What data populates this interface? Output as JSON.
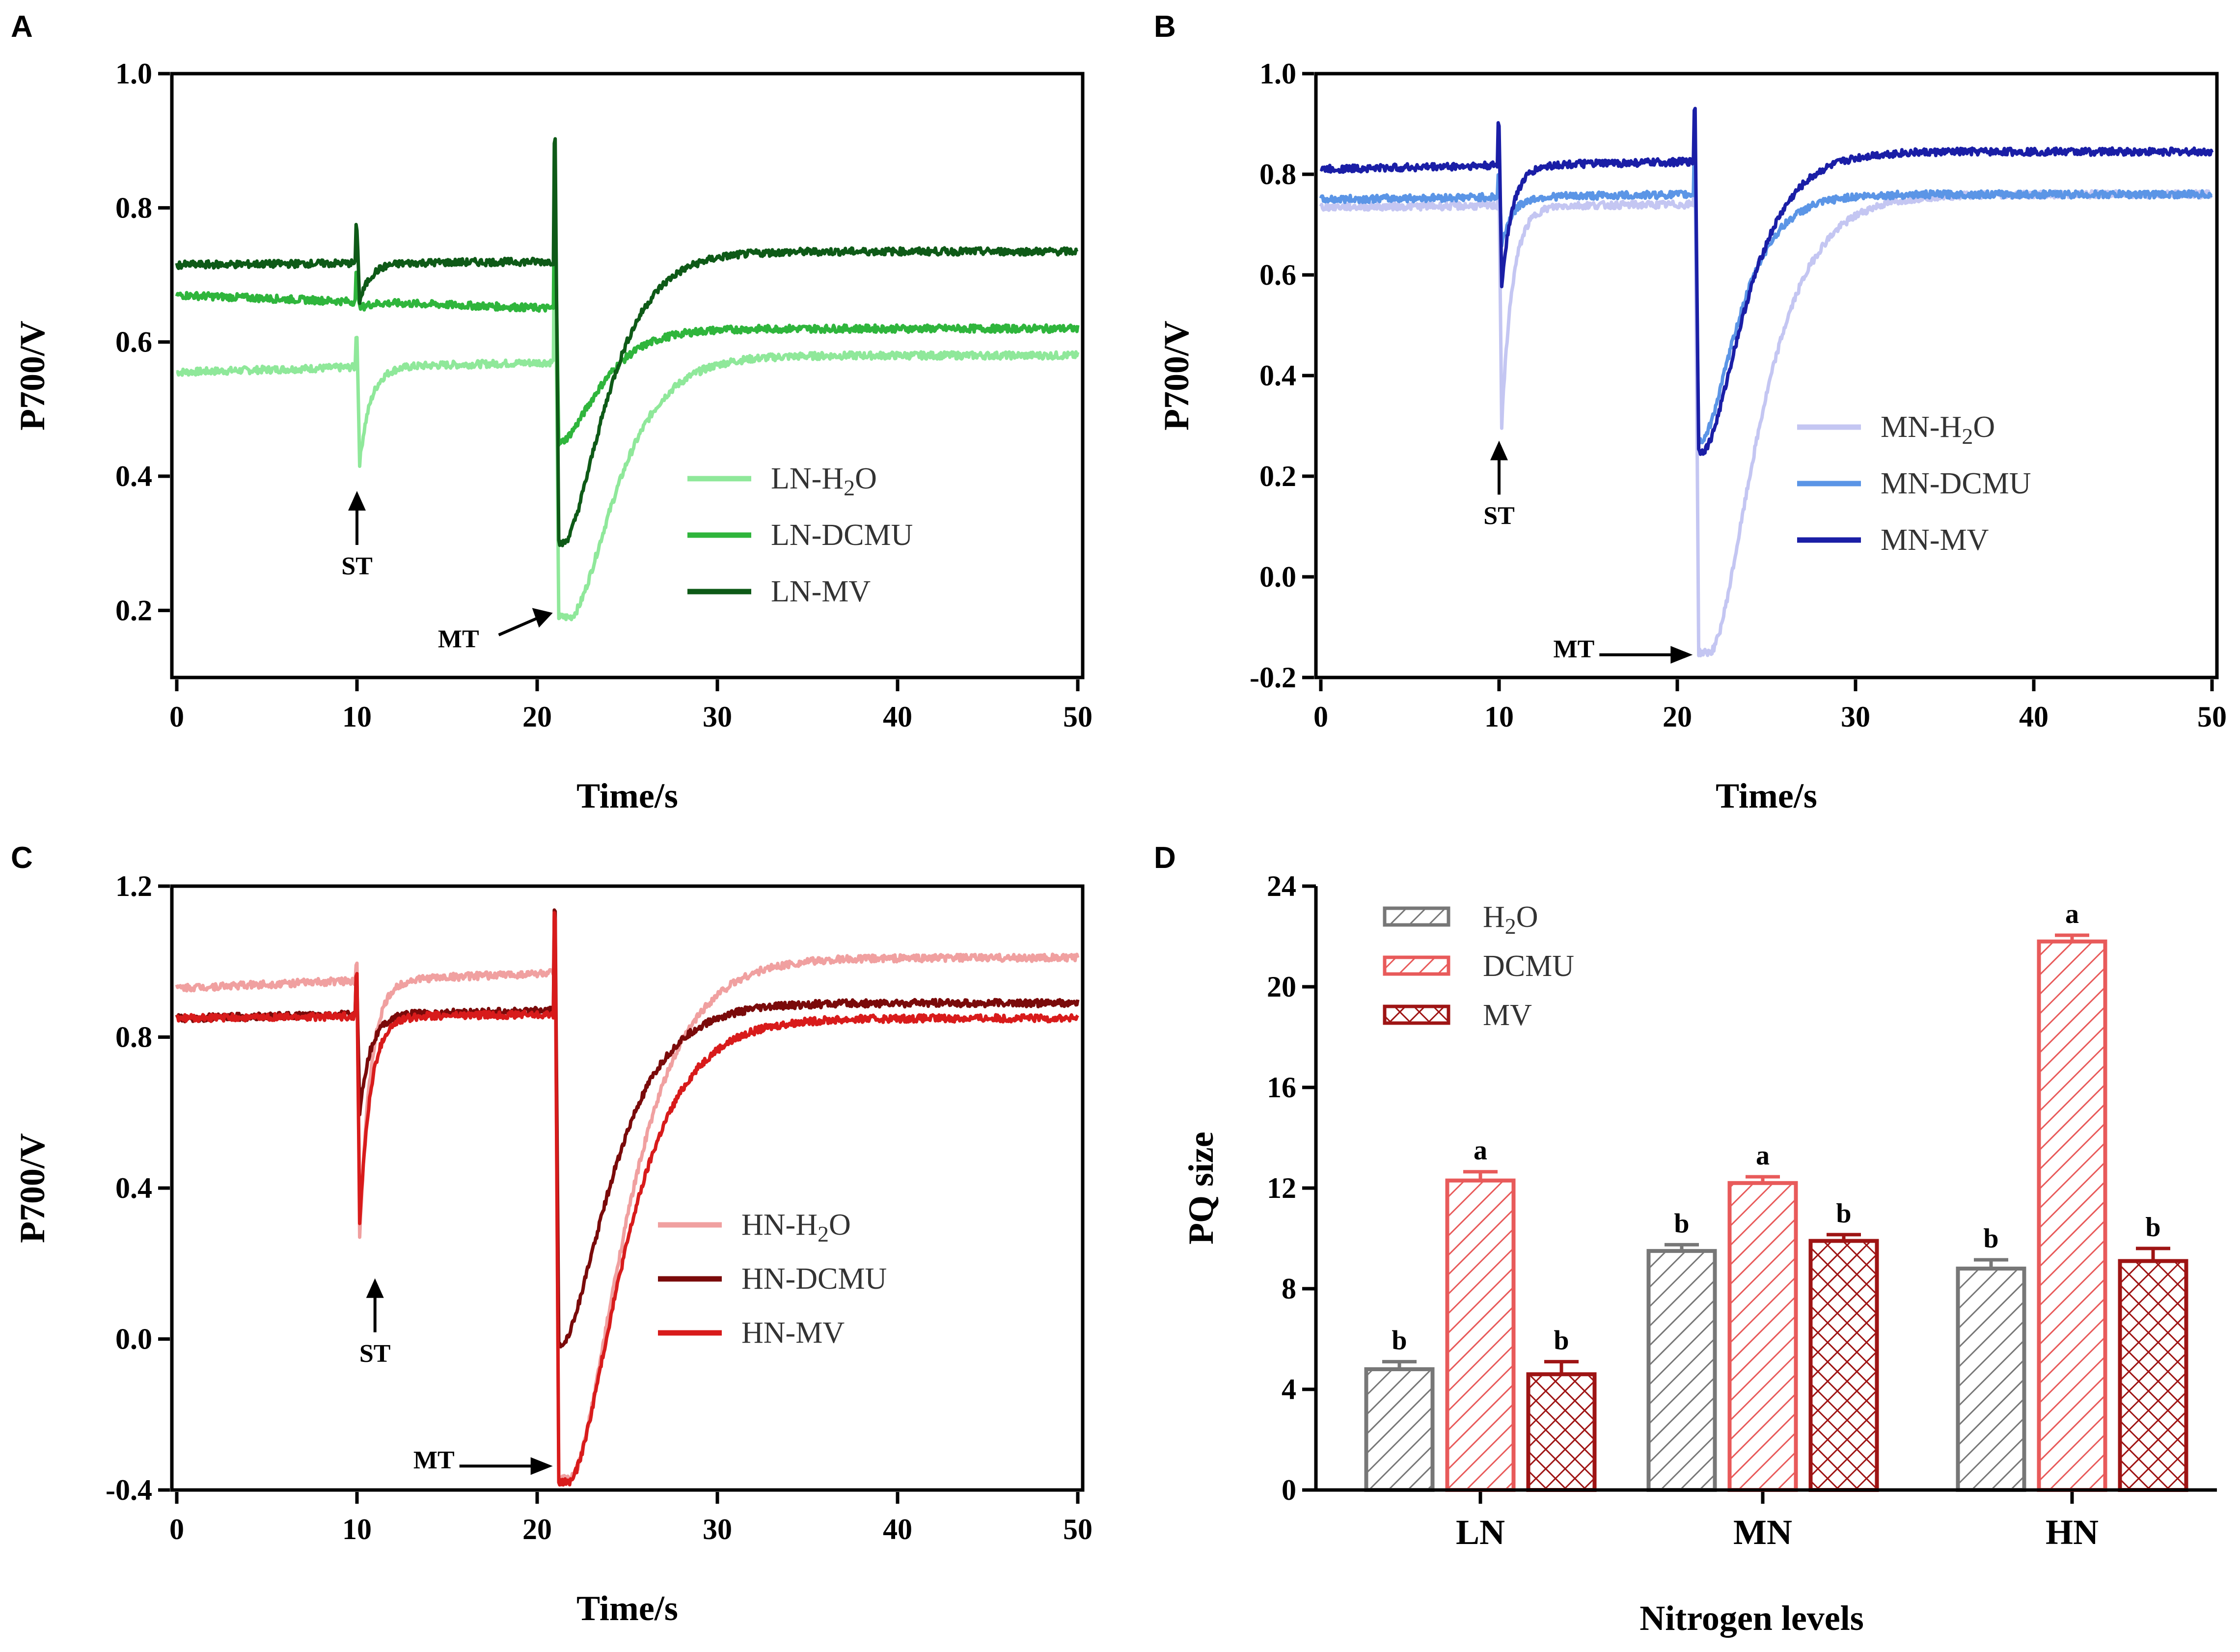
{
  "chart_data": [
    {
      "panel": "A",
      "type": "line",
      "xlabel": "Time/s",
      "ylabel": "P700/V",
      "xlim": [
        0,
        50
      ],
      "ylim": [
        0.1,
        1.0
      ],
      "xticks": [
        "0",
        "10",
        "20",
        "30",
        "40",
        "50"
      ],
      "yticks": [
        "0.2",
        "0.4",
        "0.6",
        "0.8",
        "1.0"
      ],
      "series": [
        {
          "name": "LN-H2O",
          "label": "LN-H",
          "sub": "2",
          "tail": "O",
          "color": "#8fe89a",
          "base1": 0.555,
          "base2": 0.57,
          "st_spike": 0.61,
          "st_min": 0.42,
          "mt_spike": 0.76,
          "mt_min": 0.19,
          "final": 0.58,
          "mt_lag": 0.6,
          "tau": 1.6
        },
        {
          "name": "LN-DCMU",
          "label": "LN-DCMU",
          "color": "#2fb53c",
          "base1": 0.67,
          "base2": 0.65,
          "st_spike": 0.7,
          "st_min": 0.65,
          "mt_spike": 0.8,
          "mt_min": 0.45,
          "final": 0.62,
          "mt_lag": 0.0,
          "tau": 1.4
        },
        {
          "name": "LN-MV",
          "label": "LN-MV",
          "color": "#0e5a17",
          "base1": 0.715,
          "base2": 0.72,
          "st_spike": 0.77,
          "st_min": 0.66,
          "mt_spike": 0.9,
          "mt_min": 0.3,
          "final": 0.735,
          "mt_lag": 0.2,
          "tau": 1.5
        }
      ],
      "annotations": [
        {
          "text": "ST",
          "x": 10,
          "y": 0.4
        },
        {
          "text": "MT",
          "x": 21,
          "y": 0.2
        }
      ]
    },
    {
      "panel": "B",
      "type": "line",
      "xlabel": "Time/s",
      "ylabel": "P700/V",
      "xlim": [
        0,
        50
      ],
      "ylim": [
        -0.2,
        1.0
      ],
      "xticks": [
        "0",
        "10",
        "20",
        "30",
        "40",
        "50"
      ],
      "yticks": [
        "-0.2",
        "0.0",
        "0.2",
        "0.4",
        "0.6",
        "0.8",
        "1.0"
      ],
      "series": [
        {
          "name": "MN-H2O",
          "label": "MN-H",
          "sub": "2",
          "tail": "O",
          "color": "#c4c6f2",
          "base1": 0.735,
          "base2": 0.74,
          "st_spike": 0.78,
          "st_min": 0.3,
          "mt_spike": 0.82,
          "mt_min": -0.15,
          "final": 0.76,
          "mt_lag": 0.6,
          "tau": 1.7
        },
        {
          "name": "MN-DCMU",
          "label": "MN-DCMU",
          "color": "#5b95e6",
          "base1": 0.75,
          "base2": 0.76,
          "st_spike": 0.8,
          "st_min": 0.66,
          "mt_spike": 0.86,
          "mt_min": 0.27,
          "final": 0.76,
          "mt_lag": 0.1,
          "tau": 1.3
        },
        {
          "name": "MN-MV",
          "label": "MN-MV",
          "color": "#1a1ea6",
          "base1": 0.81,
          "base2": 0.825,
          "st_spike": 0.9,
          "st_min": 0.58,
          "mt_spike": 0.93,
          "mt_min": 0.25,
          "final": 0.845,
          "mt_lag": 0.2,
          "tau": 1.5
        }
      ],
      "annotations": [
        {
          "text": "ST",
          "x": 10,
          "y": 0.3
        },
        {
          "text": "MT",
          "x": 21,
          "y": -0.15
        }
      ]
    },
    {
      "panel": "C",
      "type": "line",
      "xlabel": "Time/s",
      "ylabel": "P700/V",
      "xlim": [
        0,
        50
      ],
      "ylim": [
        -0.4,
        1.2
      ],
      "xticks": [
        "0",
        "10",
        "20",
        "30",
        "40",
        "50"
      ],
      "yticks": [
        "-0.4",
        "0.0",
        "0.4",
        "0.8",
        "1.2"
      ],
      "series": [
        {
          "name": "HN-H2O",
          "label": "HN-H",
          "sub": "2",
          "tail": "O",
          "color": "#f0a0a0",
          "base1": 0.93,
          "base2": 0.97,
          "st_spike": 1.0,
          "st_min": 0.27,
          "mt_spike": 1.1,
          "mt_min": -0.37,
          "final": 1.01,
          "mt_lag": 0.6,
          "tau": 1.9
        },
        {
          "name": "HN-DCMU",
          "label": "HN-DCMU",
          "color": "#7a0a0a",
          "base1": 0.85,
          "base2": 0.87,
          "st_spike": 0.95,
          "st_min": 0.6,
          "mt_spike": 1.14,
          "mt_min": -0.02,
          "final": 0.89,
          "mt_lag": 0.0,
          "tau": 1.8
        },
        {
          "name": "HN-MV",
          "label": "HN-MV",
          "color": "#d81b1b",
          "base1": 0.85,
          "base2": 0.86,
          "st_spike": 0.97,
          "st_min": 0.3,
          "mt_spike": 1.12,
          "mt_min": -0.38,
          "final": 0.85,
          "mt_lag": 0.5,
          "tau": 1.9
        }
      ],
      "annotations": [
        {
          "text": "ST",
          "x": 11,
          "y": 0.2
        },
        {
          "text": "MT",
          "x": 21,
          "y": -0.33
        }
      ]
    },
    {
      "panel": "D",
      "type": "bar",
      "xlabel": "Nitrogen levels",
      "ylabel": "PQ size",
      "ylim": [
        0,
        24
      ],
      "yticks": [
        "0",
        "4",
        "8",
        "12",
        "16",
        "20",
        "24"
      ],
      "categories": [
        "LN",
        "MN",
        "HN"
      ],
      "series": [
        {
          "name": "H2O",
          "label": "H",
          "sub": "2",
          "tail": "O",
          "color": "#777777",
          "pattern": "hatch",
          "values": [
            4.8,
            9.5,
            8.8
          ],
          "errors": [
            0.3,
            0.25,
            0.35
          ],
          "letters": [
            "b",
            "b",
            "b"
          ]
        },
        {
          "name": "DCMU",
          "label": "DCMU",
          "color": "#e85a5a",
          "pattern": "hatch",
          "values": [
            12.3,
            12.2,
            21.8
          ],
          "errors": [
            0.35,
            0.25,
            0.25
          ],
          "letters": [
            "a",
            "a",
            "a"
          ]
        },
        {
          "name": "MV",
          "label": "MV",
          "color": "#9e1414",
          "pattern": "cross",
          "values": [
            4.6,
            9.9,
            9.1
          ],
          "errors": [
            0.5,
            0.25,
            0.5
          ],
          "letters": [
            "b",
            "b",
            "b"
          ]
        }
      ]
    }
  ]
}
